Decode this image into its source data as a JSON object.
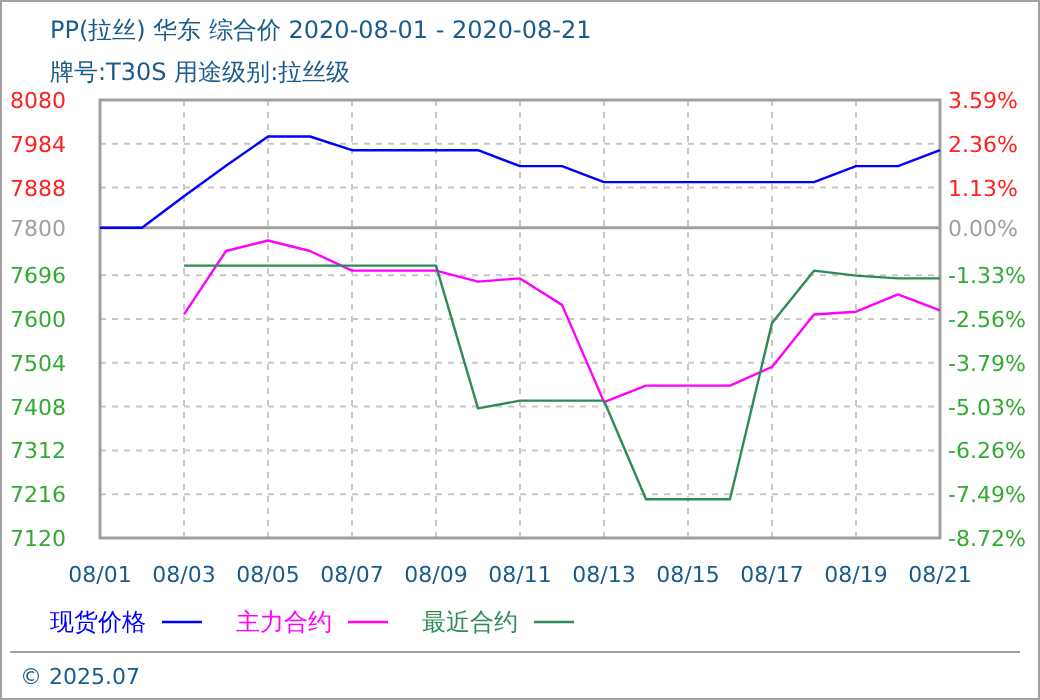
{
  "chart_data": {
    "type": "line",
    "title": "PP(拉丝) 华东 综合价 2020-08-01 - 2020-08-21",
    "subtitle": "牌号:T30S 用途级别:拉丝级",
    "annotations": [
      "© 2025.07"
    ],
    "x": [
      "2020-08-01",
      "2020-08-02",
      "2020-08-03",
      "2020-08-04",
      "2020-08-05",
      "2020-08-06",
      "2020-08-07",
      "2020-08-08",
      "2020-08-09",
      "2020-08-10",
      "2020-08-11",
      "2020-08-12",
      "2020-08-13",
      "2020-08-14",
      "2020-08-15",
      "2020-08-16",
      "2020-08-17",
      "2020-08-18",
      "2020-08-19",
      "2020-08-20",
      "2020-08-21"
    ],
    "series": [
      {
        "name": "现货价格",
        "color": "#0000ff",
        "values": [
          7800,
          7800,
          7869,
          7936,
          8000,
          8000,
          7970,
          7970,
          7970,
          7970,
          7935,
          7935,
          7900,
          7900,
          7900,
          7900,
          7900,
          7900,
          7935,
          7935,
          7970
        ]
      },
      {
        "name": "主力合约",
        "color": "#ff00ff",
        "values": [
          null,
          null,
          7610,
          7749,
          7772,
          7749,
          7706,
          7706,
          7706,
          7682,
          7689,
          7631,
          7418,
          7454,
          7454,
          7454,
          7495,
          7610,
          7616,
          7654,
          7619
        ]
      },
      {
        "name": "最近合约",
        "color": "#2e8b57",
        "values": [
          null,
          null,
          7717,
          7717,
          7717,
          7717,
          7717,
          7717,
          7717,
          7404,
          7421,
          7421,
          7421,
          7205,
          7205,
          7205,
          7591,
          7706,
          7695,
          7689,
          7689
        ]
      }
    ],
    "xlim": [
      "2020-08-01",
      "2020-08-21"
    ],
    "xticks": [
      {
        "value": "2020-08-01",
        "label": "08/01"
      },
      {
        "value": "2020-08-03",
        "label": "08/03"
      },
      {
        "value": "2020-08-05",
        "label": "08/05"
      },
      {
        "value": "2020-08-07",
        "label": "08/07"
      },
      {
        "value": "2020-08-09",
        "label": "08/09"
      },
      {
        "value": "2020-08-11",
        "label": "08/11"
      },
      {
        "value": "2020-08-13",
        "label": "08/13"
      },
      {
        "value": "2020-08-15",
        "label": "08/15"
      },
      {
        "value": "2020-08-17",
        "label": "08/17"
      },
      {
        "value": "2020-08-19",
        "label": "08/19"
      },
      {
        "value": "2020-08-21",
        "label": "08/21"
      }
    ],
    "ylim": [
      7120,
      8080
    ],
    "yticks": [
      8080,
      7984,
      7888,
      7800,
      7696,
      7600,
      7504,
      7408,
      7312,
      7216,
      7120
    ],
    "y2lim": [
      -8.72,
      3.59
    ],
    "y2ticks": [
      {
        "value": 3.59,
        "label": "3.59%"
      },
      {
        "value": 2.36,
        "label": "2.36%"
      },
      {
        "value": 1.13,
        "label": "1.13%"
      },
      {
        "value": 0,
        "label": "0.00%"
      },
      {
        "value": -1.33,
        "label": "-1.33%"
      },
      {
        "value": -2.56,
        "label": "-2.56%"
      },
      {
        "value": -3.79,
        "label": "-3.79%"
      },
      {
        "value": -5.03,
        "label": "-5.03%"
      },
      {
        "value": -6.26,
        "label": "-6.26%"
      },
      {
        "value": -7.49,
        "label": "-7.49%"
      },
      {
        "value": -8.72,
        "label": "-8.72%"
      }
    ],
    "ref_lines": [
      {
        "axis": "y",
        "value": 7800,
        "color": "#a0a0a0"
      }
    ],
    "grid": true,
    "legend": "bottom",
    "line_style": "solid",
    "marker": "none"
  }
}
